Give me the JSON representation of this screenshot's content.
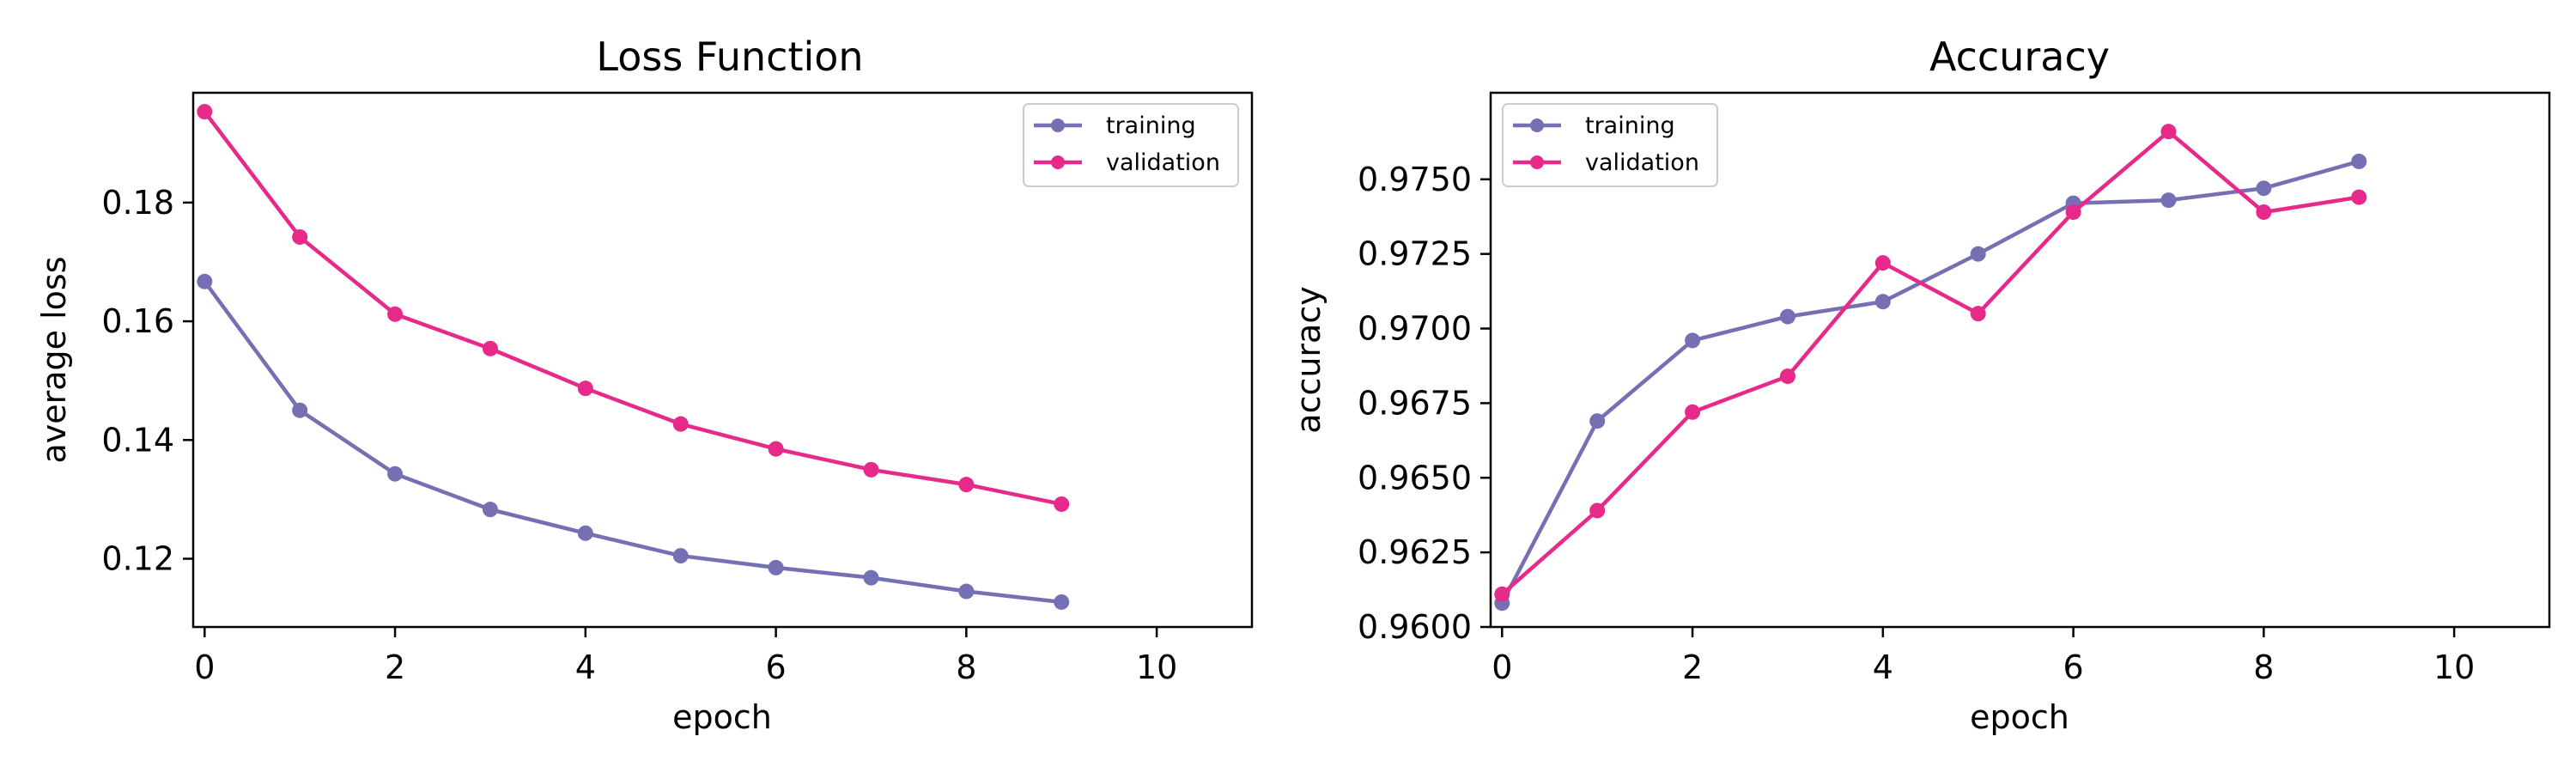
{
  "colors": {
    "training": "#7570b3",
    "validation": "#e7298a"
  },
  "chart_data": [
    {
      "type": "line",
      "title": "Loss Function",
      "xlabel": "epoch",
      "ylabel": "average loss",
      "xlim": [
        -0.12,
        11.0
      ],
      "ylim": [
        0.1085,
        0.1985
      ],
      "xticks": [
        0,
        2,
        4,
        6,
        8,
        10
      ],
      "xtick_labels": [
        "0",
        "2",
        "4",
        "6",
        "8",
        "10"
      ],
      "yticks": [
        0.12,
        0.14,
        0.16,
        0.18
      ],
      "ytick_labels": [
        "0.12",
        "0.14",
        "0.16",
        "0.18"
      ],
      "grid": false,
      "legend": {
        "position": "top-right",
        "entries": [
          "training",
          "validation"
        ]
      },
      "x": [
        0,
        1,
        2,
        3,
        4,
        5,
        6,
        7,
        8,
        9
      ],
      "series": [
        {
          "name": "training",
          "color": "#7570b3",
          "values": [
            0.1667,
            0.145,
            0.1343,
            0.1283,
            0.1243,
            0.1205,
            0.1185,
            0.1168,
            0.1145,
            0.1127
          ]
        },
        {
          "name": "validation",
          "color": "#e7298a",
          "values": [
            0.1953,
            0.1742,
            0.1612,
            0.1554,
            0.1487,
            0.1427,
            0.1385,
            0.135,
            0.1325,
            0.1292
          ]
        }
      ]
    },
    {
      "type": "line",
      "title": "Accuracy",
      "xlabel": "epoch",
      "ylabel": "accuracy",
      "xlim": [
        -0.12,
        11.0
      ],
      "ylim": [
        0.96,
        0.9779
      ],
      "xticks": [
        0,
        2,
        4,
        6,
        8,
        10
      ],
      "xtick_labels": [
        "0",
        "2",
        "4",
        "6",
        "8",
        "10"
      ],
      "yticks": [
        0.96,
        0.9625,
        0.965,
        0.9675,
        0.97,
        0.9725,
        0.975
      ],
      "ytick_labels": [
        "0.9600",
        "0.9625",
        "0.9650",
        "0.9675",
        "0.9700",
        "0.9725",
        "0.9750"
      ],
      "grid": false,
      "legend": {
        "position": "top-left",
        "entries": [
          "training",
          "validation"
        ]
      },
      "x": [
        0,
        1,
        2,
        3,
        4,
        5,
        6,
        7,
        8,
        9
      ],
      "series": [
        {
          "name": "training",
          "color": "#7570b3",
          "values": [
            0.9608,
            0.9669,
            0.9696,
            0.9704,
            0.9709,
            0.9725,
            0.9742,
            0.9743,
            0.9747,
            0.9756
          ]
        },
        {
          "name": "validation",
          "color": "#e7298a",
          "values": [
            0.9611,
            0.9639,
            0.9672,
            0.9684,
            0.9722,
            0.9705,
            0.9739,
            0.9766,
            0.9739,
            0.9744
          ]
        }
      ]
    }
  ]
}
